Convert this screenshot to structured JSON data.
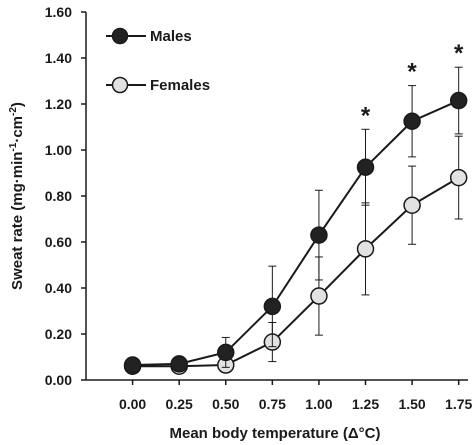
{
  "chart_data": {
    "type": "line",
    "xlabel_main": "Mean body temperature (",
    "xlabel_delta": "Δ",
    "xlabel_unit": "°C)",
    "ylabel_main": "Sweat rate (mg·min",
    "ylabel_exp1": "-1",
    "ylabel_mid": "·cm",
    "ylabel_exp2": "-2",
    "ylabel_end": ")",
    "x": [
      0.0,
      0.25,
      0.5,
      0.75,
      1.0,
      1.25,
      1.5,
      1.75
    ],
    "x_tick_labels": [
      "0.00",
      "0.25",
      "0.50",
      "0.75",
      "1.00",
      "1.25",
      "1.50",
      "1.75"
    ],
    "xlim": [
      -0.25,
      1.8
    ],
    "y_ticks": [
      0.0,
      0.2,
      0.4,
      0.6,
      0.8,
      1.0,
      1.2,
      1.4,
      1.6
    ],
    "y_tick_labels": [
      "0.00",
      "0.20",
      "0.40",
      "0.60",
      "0.80",
      "1.00",
      "1.20",
      "1.40",
      "1.60"
    ],
    "ylim": [
      0,
      1.6
    ],
    "grid": false,
    "legend_position": "top-left",
    "series": [
      {
        "name": "Males",
        "marker_fill": "#222222",
        "values": [
          0.065,
          0.07,
          0.12,
          0.32,
          0.63,
          0.925,
          1.125,
          1.215
        ],
        "error": [
          0.0,
          0.0,
          0.065,
          0.175,
          0.195,
          0.165,
          0.155,
          0.145
        ]
      },
      {
        "name": "Females",
        "marker_fill": "#e2e2e2",
        "values": [
          0.06,
          0.06,
          0.065,
          0.165,
          0.365,
          0.57,
          0.76,
          0.88
        ],
        "error": [
          0.0,
          0.0,
          0.0,
          0.085,
          0.17,
          0.2,
          0.17,
          0.18
        ]
      }
    ],
    "significance": {
      "symbol": "*",
      "x": [
        1.25,
        1.5,
        1.75
      ]
    }
  }
}
